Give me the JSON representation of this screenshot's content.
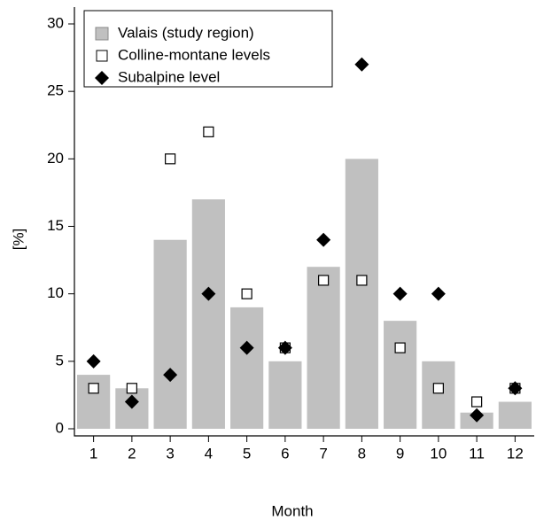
{
  "chart_data": {
    "type": "bar",
    "x_label": "Month",
    "y_label": "[%]",
    "categories": [
      "1",
      "2",
      "3",
      "4",
      "5",
      "6",
      "7",
      "8",
      "9",
      "10",
      "11",
      "12"
    ],
    "series": [
      {
        "name": "Valais (study region)",
        "marker": "bar",
        "color": "#c0c0c0",
        "values": [
          4,
          3,
          14,
          17,
          9,
          5,
          12,
          20,
          8,
          5,
          1.2,
          2
        ]
      },
      {
        "name": "Colline-montane levels",
        "marker": "square",
        "color": "#ffffff",
        "values": [
          3,
          3,
          20,
          22,
          10,
          6,
          11,
          11,
          6,
          3,
          2,
          3
        ]
      },
      {
        "name": "Subalpine level",
        "marker": "diamond",
        "color": "#000000",
        "values": [
          5,
          2,
          4,
          10,
          6,
          6,
          14,
          27,
          10,
          10,
          1,
          3
        ]
      }
    ],
    "ylim": [
      0,
      30
    ],
    "yticks": [
      0,
      5,
      10,
      15,
      20,
      25,
      30
    ],
    "legend": "upper-left"
  }
}
